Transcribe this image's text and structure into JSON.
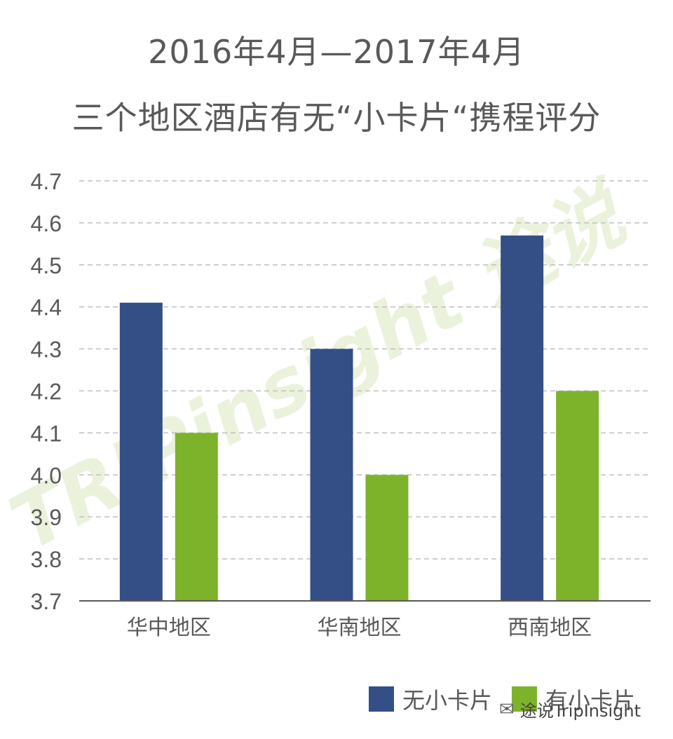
{
  "chart_data": {
    "type": "bar",
    "title": "2016年4月—2017年4月",
    "subtitle": "三个地区酒店有无“小卡片“携程评分",
    "categories": [
      "华中地区",
      "华南地区",
      "西南地区"
    ],
    "series": [
      {
        "name": "无小卡片",
        "color": "#344F86",
        "values": [
          4.41,
          4.3,
          4.57
        ]
      },
      {
        "name": "有小卡片",
        "color": "#7DB32B",
        "values": [
          4.1,
          4.0,
          4.2
        ]
      }
    ],
    "ylim": [
      3.7,
      4.7
    ],
    "yticks": [
      "3.7",
      "3.8",
      "3.9",
      "4.0",
      "4.1",
      "4.2",
      "4.3",
      "4.4",
      "4.5",
      "4.6",
      "4.7"
    ],
    "grid": true,
    "legend_position": "bottom-right"
  },
  "watermark": {
    "text": "TRIPinsight 途说"
  },
  "source": {
    "icon": "wechat-icon",
    "text": "途说TripInsight"
  }
}
